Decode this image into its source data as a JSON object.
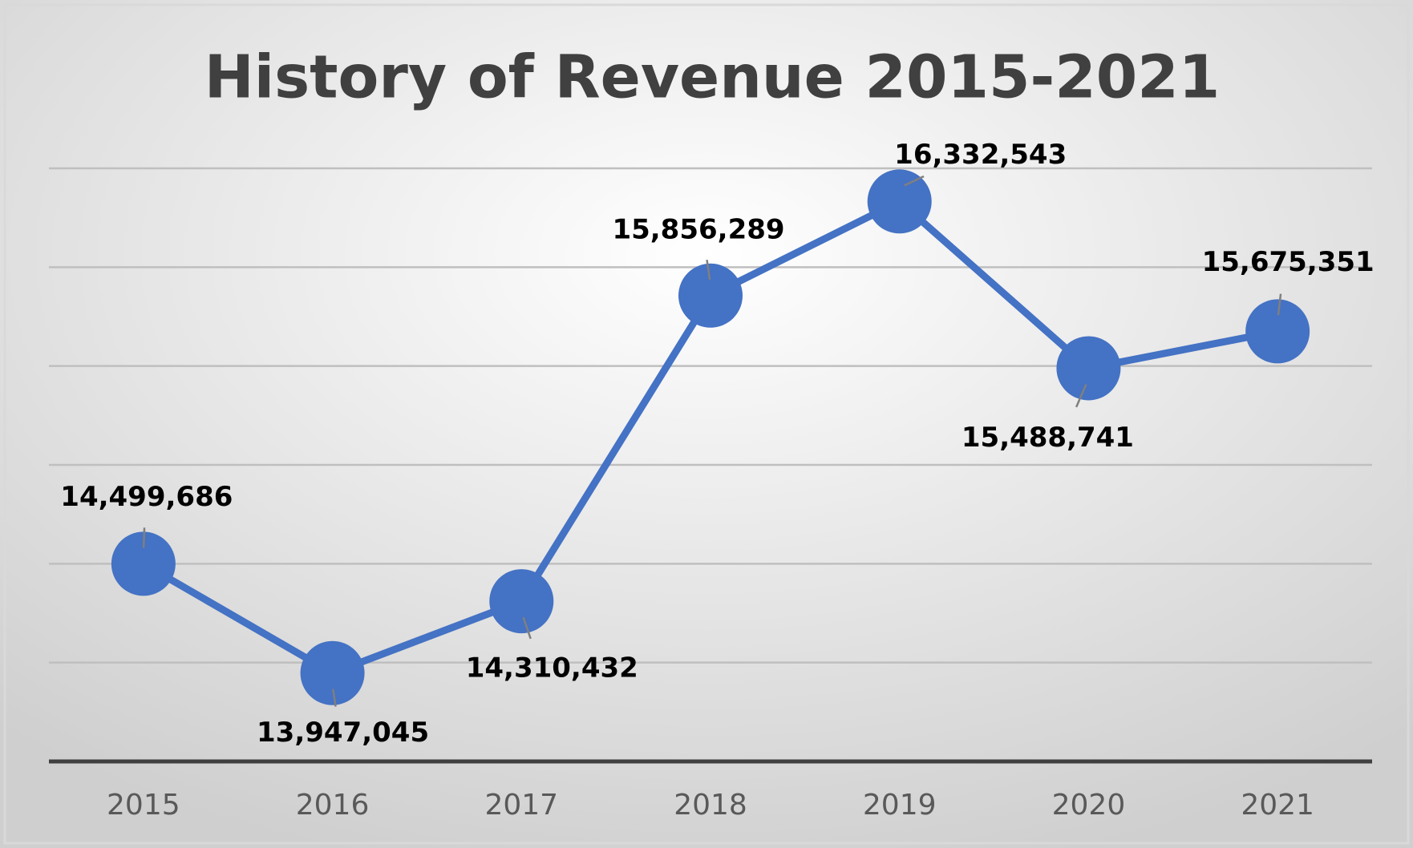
{
  "chart_data": {
    "type": "line",
    "title": "History of Revenue 2015-2021",
    "categories": [
      "2015",
      "2016",
      "2017",
      "2018",
      "2019",
      "2020",
      "2021"
    ],
    "series": [
      {
        "name": "Revenue",
        "color": "#4472c4",
        "values": [
          14499686,
          13947045,
          14310432,
          15856289,
          16332543,
          15488741,
          15675351
        ],
        "value_labels": [
          "14,499,686",
          "13,947,045",
          "14,310,432",
          "15,856,289",
          "16,332,543",
          "15,488,741",
          "15,675,351"
        ]
      }
    ],
    "ylim": [
      13500000,
      16500000
    ],
    "yticks": [
      13500000,
      14000000,
      14500000,
      15000000,
      15500000,
      16000000,
      16500000
    ],
    "grid": true
  }
}
